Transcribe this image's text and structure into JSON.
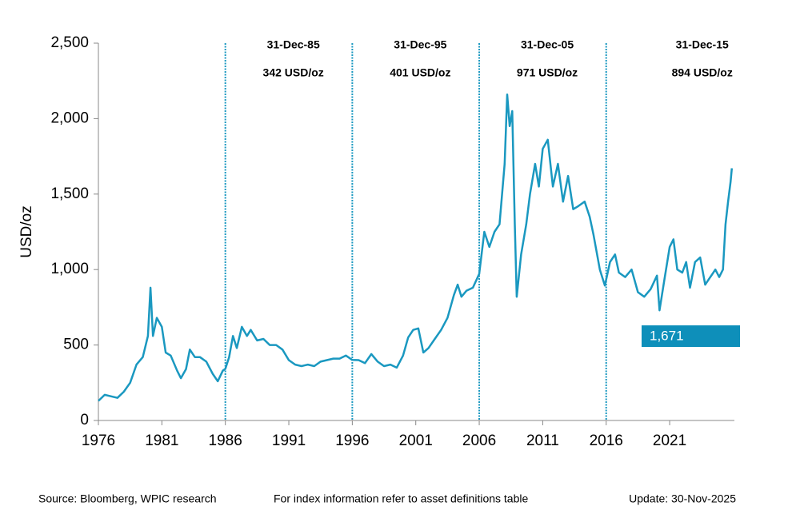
{
  "chart_data": {
    "type": "line",
    "y_label": "USD/oz",
    "x": [
      1976.0,
      1976.5,
      1977.0,
      1977.5,
      1978.0,
      1978.5,
      1979.0,
      1979.5,
      1979.9,
      1980.1,
      1980.3,
      1980.6,
      1981.0,
      1981.3,
      1981.7,
      1982.2,
      1982.5,
      1982.9,
      1983.2,
      1983.6,
      1984.0,
      1984.5,
      1985.0,
      1985.4,
      1985.8,
      1986.0,
      1986.3,
      1986.6,
      1986.9,
      1987.3,
      1987.7,
      1988.0,
      1988.5,
      1989.0,
      1989.5,
      1990.0,
      1990.5,
      1991.0,
      1991.5,
      1992.0,
      1992.5,
      1993.0,
      1993.5,
      1994.0,
      1994.5,
      1995.0,
      1995.5,
      1996.0,
      1996.5,
      1997.0,
      1997.5,
      1998.0,
      1998.5,
      1999.0,
      1999.5,
      2000.0,
      2000.4,
      2000.8,
      2001.2,
      2001.6,
      2002.0,
      2002.5,
      2003.0,
      2003.5,
      2004.0,
      2004.3,
      2004.6,
      2005.0,
      2005.5,
      2006.0,
      2006.4,
      2006.8,
      2007.2,
      2007.6,
      2008.0,
      2008.2,
      2008.4,
      2008.6,
      2008.8,
      2008.95,
      2009.3,
      2009.7,
      2010.0,
      2010.4,
      2010.7,
      2011.0,
      2011.4,
      2011.8,
      2012.2,
      2012.6,
      2013.0,
      2013.4,
      2013.8,
      2014.3,
      2014.7,
      2015.0,
      2015.5,
      2015.9,
      2016.3,
      2016.7,
      2017.0,
      2017.5,
      2018.0,
      2018.5,
      2019.0,
      2019.5,
      2020.0,
      2020.2,
      2020.6,
      2021.0,
      2021.3,
      2021.6,
      2022.0,
      2022.3,
      2022.6,
      2023.0,
      2023.4,
      2023.8,
      2024.2,
      2024.6,
      2024.9,
      2025.2,
      2025.4,
      2025.6,
      2025.8,
      2025.9
    ],
    "series": [
      {
        "color": "#1a98c0",
        "values": [
          130,
          170,
          160,
          150,
          190,
          250,
          370,
          420,
          560,
          880,
          560,
          680,
          620,
          450,
          430,
          330,
          280,
          340,
          470,
          420,
          420,
          390,
          310,
          260,
          330,
          342,
          420,
          560,
          480,
          620,
          560,
          600,
          530,
          540,
          500,
          500,
          470,
          400,
          370,
          360,
          370,
          360,
          390,
          400,
          410,
          410,
          430,
          401,
          400,
          380,
          440,
          390,
          360,
          370,
          350,
          430,
          550,
          600,
          610,
          450,
          480,
          540,
          600,
          680,
          830,
          900,
          820,
          860,
          880,
          971,
          1250,
          1150,
          1250,
          1300,
          1700,
          2160,
          1950,
          2050,
          1300,
          820,
          1100,
          1300,
          1500,
          1700,
          1550,
          1800,
          1860,
          1550,
          1700,
          1450,
          1620,
          1400,
          1420,
          1450,
          1350,
          1230,
          1000,
          894,
          1050,
          1100,
          980,
          950,
          1000,
          850,
          820,
          870,
          960,
          730,
          940,
          1150,
          1200,
          1000,
          980,
          1050,
          880,
          1050,
          1080,
          900,
          950,
          1000,
          950,
          1000,
          1300,
          1450,
          1580,
          1671
        ],
        "end_label": {
          "value": 1671,
          "label": "1,671"
        }
      }
    ],
    "xlim": [
      1976,
      2026.1
    ],
    "xticks": [
      1976,
      1981,
      1986,
      1991,
      1996,
      2001,
      2006,
      2011,
      2016,
      2021
    ],
    "ylim": [
      0,
      2500
    ],
    "yticks": [
      0,
      500,
      {
        "value": 1000,
        "label": "1,000"
      },
      {
        "value": 1500,
        "label": "1,500"
      },
      {
        "value": 2000,
        "label": "2,000"
      },
      {
        "value": 2500,
        "label": "2,500"
      }
    ],
    "annotations": [
      {
        "x": 1986,
        "date": "31-Dec-85",
        "price": "342 USD/oz"
      },
      {
        "x": 1996,
        "date": "31-Dec-95",
        "price": "401 USD/oz"
      },
      {
        "x": 2006,
        "date": "31-Dec-05",
        "price": "971 USD/oz"
      },
      {
        "x": 2016,
        "date": "31-Dec-15",
        "price": "894 USD/oz"
      }
    ],
    "footer": [
      "Source: Bloomberg, WPIC research",
      "For index information refer to asset definitions table",
      "Update: 30-Nov-2025"
    ]
  }
}
